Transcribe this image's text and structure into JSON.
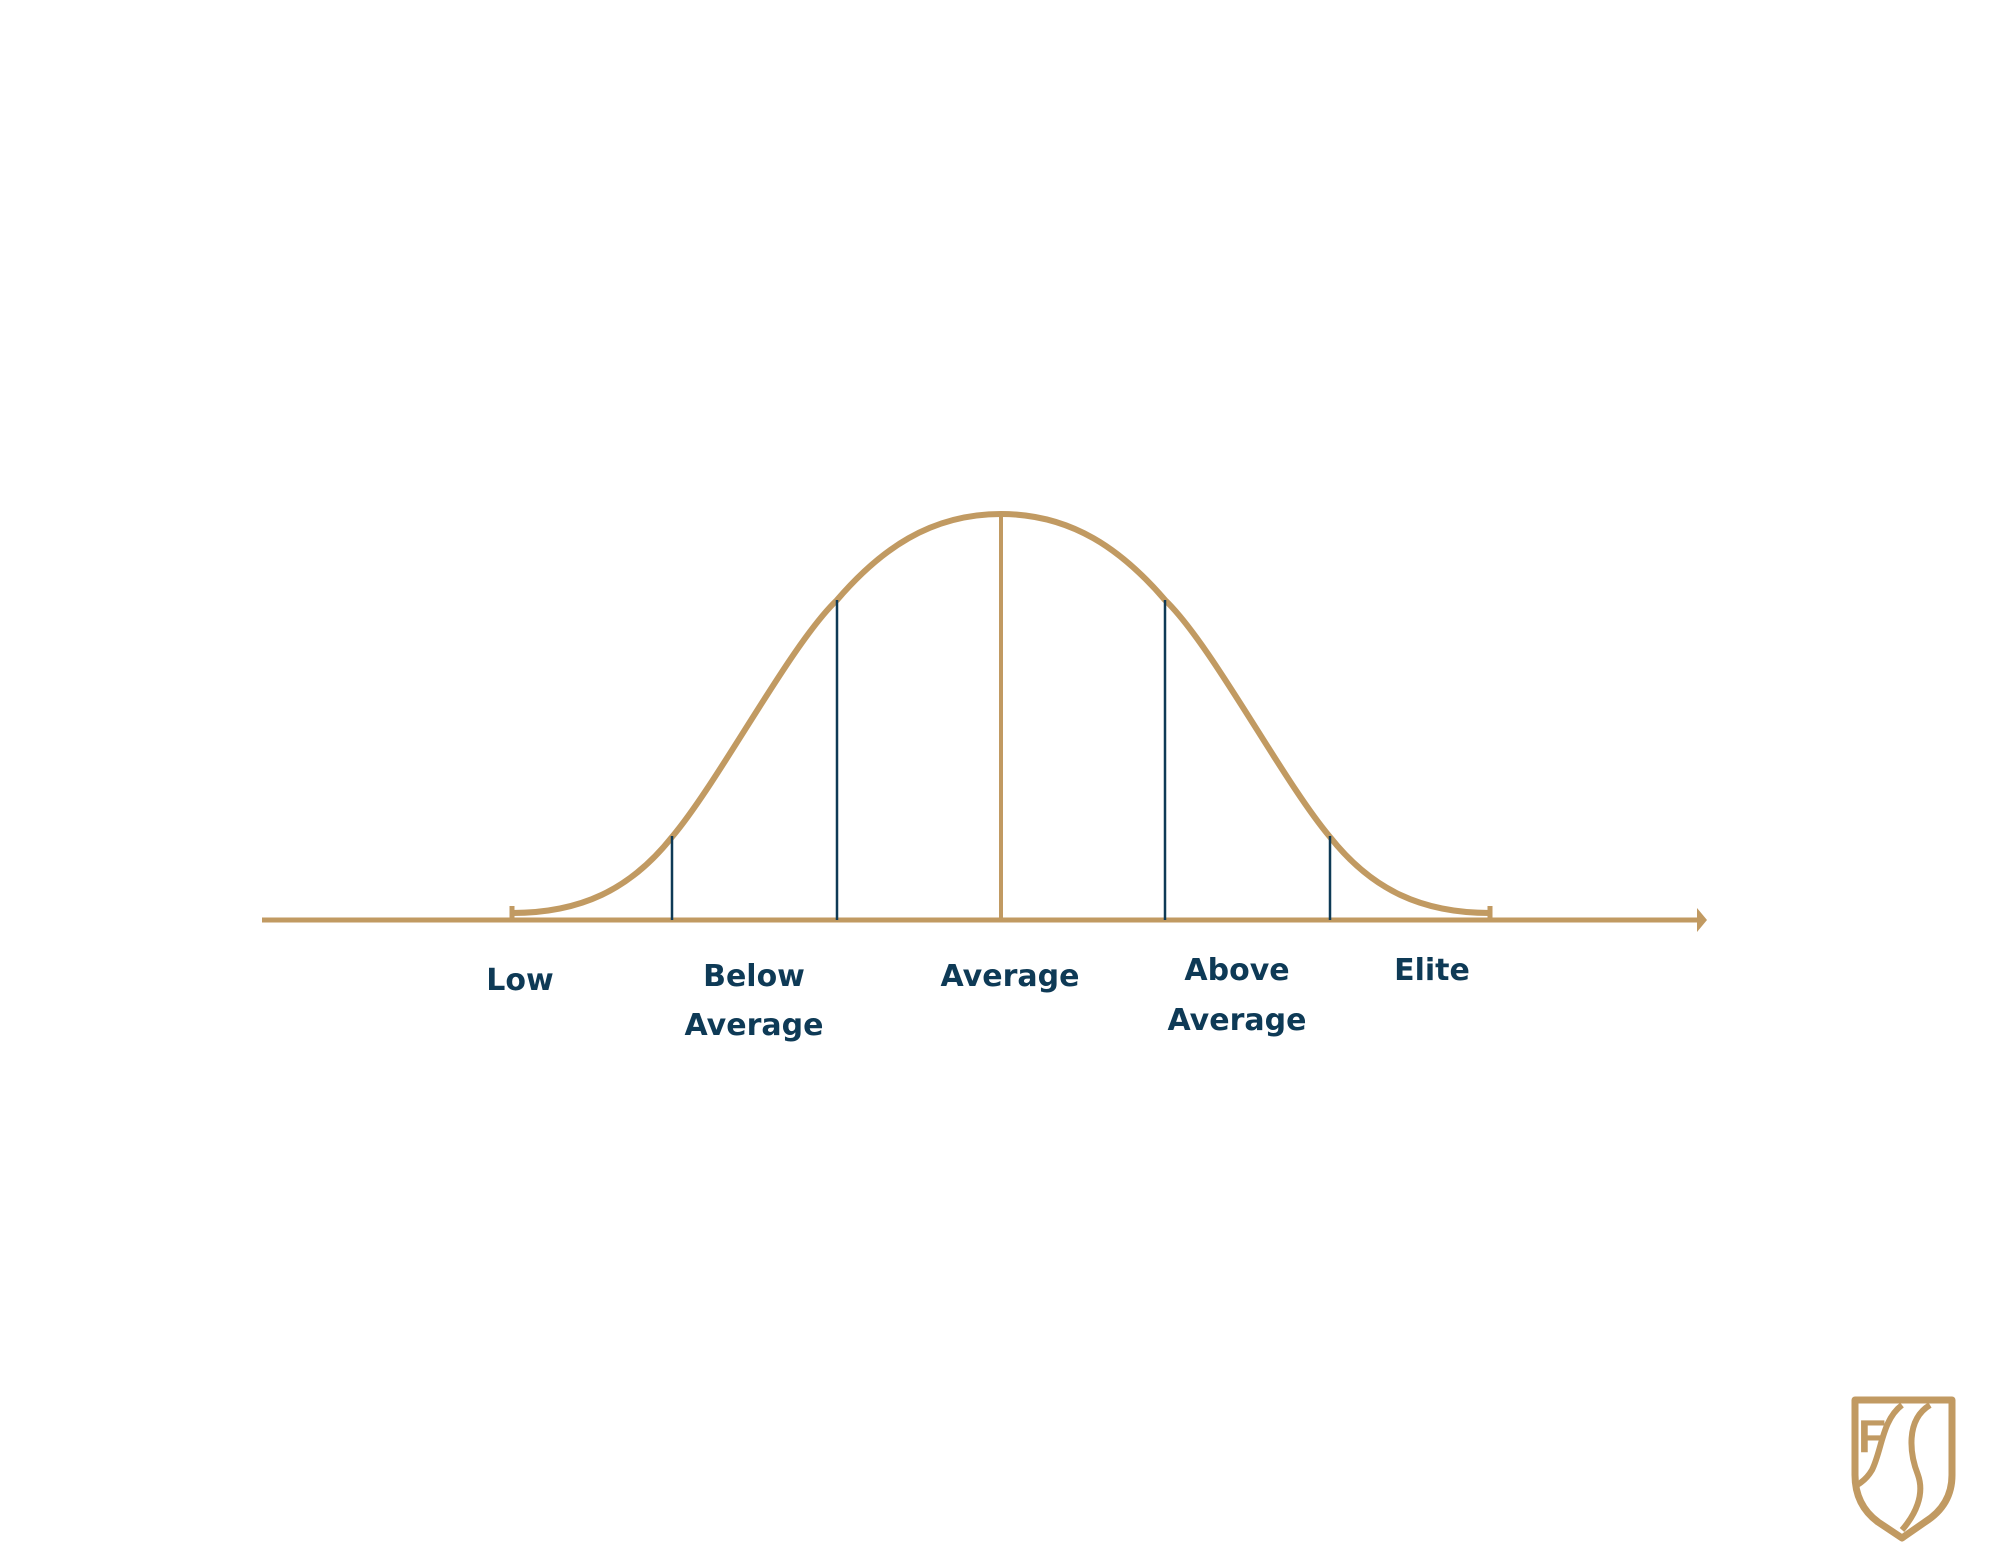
{
  "diagram": {
    "type": "bell-curve",
    "colors": {
      "curve": "#c19a62",
      "axis": "#c19a62",
      "divider": "#0e3a56",
      "label": "#0e3a56",
      "logo": "#c19a62"
    },
    "labels": {
      "low": "Low",
      "below_line1": "Below",
      "below_line2": "Average",
      "average": "Average",
      "above_line1": "Above",
      "above_line2": "Average",
      "elite": "Elite"
    },
    "logo": {
      "text": "F"
    }
  }
}
